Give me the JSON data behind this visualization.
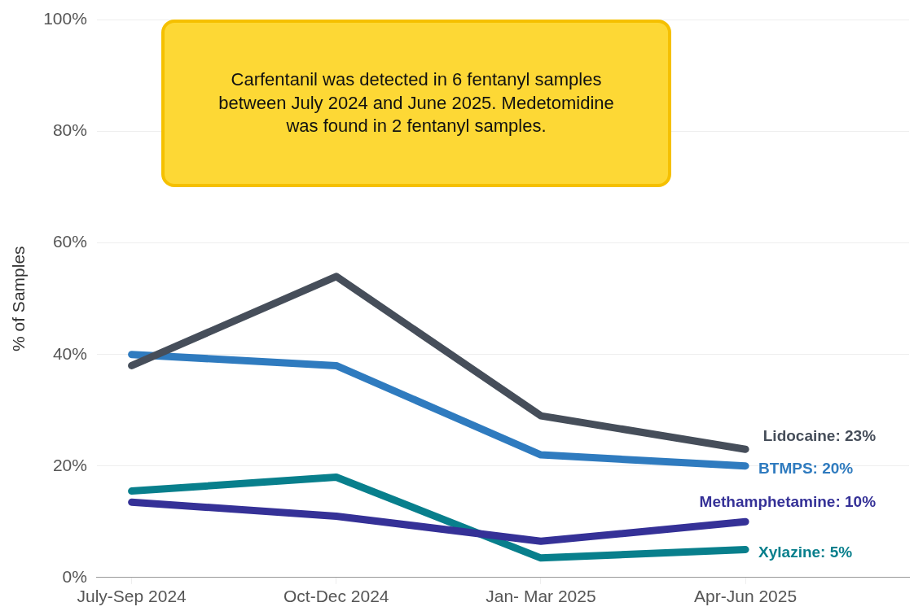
{
  "chart_data": {
    "type": "line",
    "ylabel": "% of Samples",
    "categories": [
      "July-Sep 2024",
      "Oct-Dec 2024",
      "Jan- Mar 2025",
      "Apr-Jun 2025"
    ],
    "series": [
      {
        "color": "#464e5a",
        "values": [
          38,
          54,
          29,
          23
        ],
        "value_labels": [
          null,
          null,
          null,
          "Lidocaine: 23%"
        ]
      },
      {
        "color": "#2f7bbf",
        "values": [
          40,
          38,
          22,
          20
        ],
        "value_labels": [
          null,
          null,
          null,
          "BTMPS: 20%"
        ]
      },
      {
        "color": "#353197",
        "values": [
          13.5,
          11,
          6.5,
          10
        ],
        "value_labels": [
          null,
          null,
          null,
          "Methamphetamine: 10%"
        ]
      },
      {
        "color": "#087f8c",
        "values": [
          15.5,
          18,
          3.5,
          5
        ],
        "value_labels": [
          null,
          null,
          null,
          "Xylazine: 5%"
        ]
      }
    ],
    "ylim": [
      0,
      100
    ],
    "yticks": [
      {
        "value": 0,
        "label": "0%"
      },
      {
        "value": 20,
        "label": "20%"
      },
      {
        "value": 40,
        "label": "40%"
      },
      {
        "value": 60,
        "label": "60%"
      },
      {
        "value": 80,
        "label": "80%"
      },
      {
        "value": 100,
        "label": "100%"
      }
    ],
    "grid": "y",
    "legend": false,
    "marker": "none",
    "line_style": "solid",
    "annotations": [
      "Carfentanil was detected in 6 fentanyl samples between July 2024 and June 2025. Medetomidine was found in 2 fentanyl samples."
    ]
  }
}
